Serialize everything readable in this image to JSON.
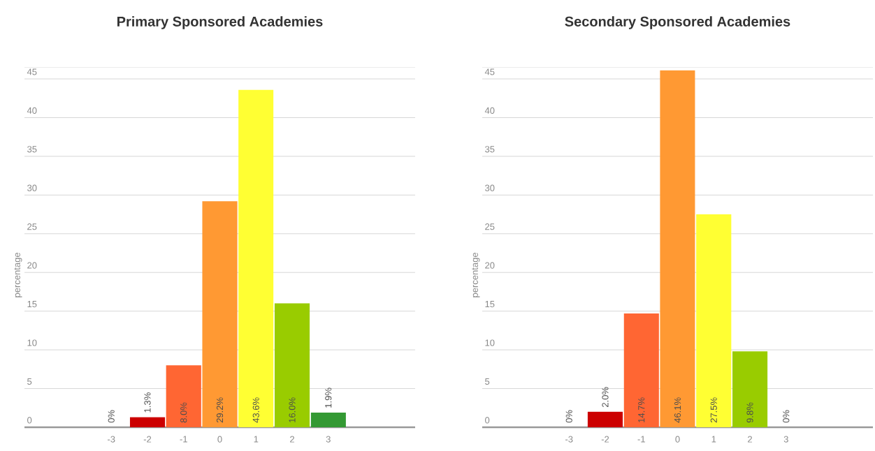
{
  "chart_data": [
    {
      "type": "bar",
      "title": "Primary Sponsored Academies",
      "ylabel": "percentage",
      "categories": [
        "-3",
        "-2",
        "-1",
        "0",
        "1",
        "2",
        "3"
      ],
      "values": [
        0,
        1.3,
        8.0,
        29.2,
        43.6,
        16.0,
        1.9
      ],
      "colors": [
        null,
        "#cc0000",
        "#ff6633",
        "#ff9933",
        "#ffff33",
        "#99cc00",
        "#339933"
      ],
      "value_labels": [
        "0%",
        "1.3%",
        "8.0%",
        "29.2%",
        "43.6%",
        "16.0%",
        "1.9%"
      ],
      "ylim": [
        0,
        46.5
      ],
      "yticks": [
        0,
        5,
        10,
        15,
        20,
        25,
        30,
        35,
        40,
        45
      ],
      "grid": "y"
    },
    {
      "type": "bar",
      "title": "Secondary Sponsored Academies",
      "ylabel": "percentage",
      "categories": [
        "-3",
        "-2",
        "-1",
        "0",
        "1",
        "2",
        "3"
      ],
      "values": [
        0,
        2.0,
        14.7,
        46.1,
        27.5,
        9.8,
        0
      ],
      "colors": [
        null,
        "#cc0000",
        "#ff6633",
        "#ff9933",
        "#ffff33",
        "#99cc00",
        null
      ],
      "value_labels": [
        "0%",
        "2.0%",
        "14.7%",
        "46.1%",
        "27.5%",
        "9.8%",
        "0%"
      ],
      "ylim": [
        0,
        46.5
      ],
      "yticks": [
        0,
        5,
        10,
        15,
        20,
        25,
        30,
        35,
        40,
        45
      ],
      "grid": "y"
    }
  ]
}
